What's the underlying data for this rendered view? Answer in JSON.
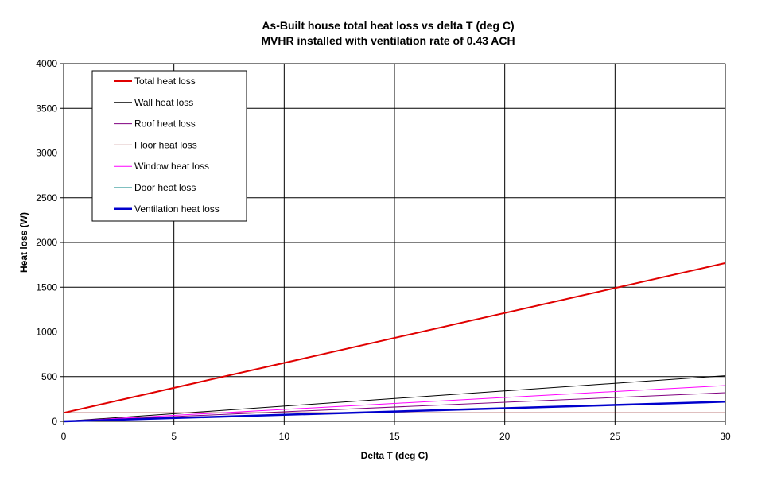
{
  "chart_data": {
    "type": "line",
    "title": "As-Built house total heat loss vs delta T (deg C)",
    "subtitle": "MVHR installed with ventilation rate of 0.43 ACH",
    "xlabel": "Delta T (deg C)",
    "ylabel": "Heat loss (W)",
    "xlim": [
      0,
      30
    ],
    "ylim": [
      0,
      4000
    ],
    "x_ticks": [
      0,
      5,
      10,
      15,
      20,
      25,
      30
    ],
    "y_ticks": [
      0,
      500,
      1000,
      1500,
      2000,
      2500,
      3000,
      3500,
      4000
    ],
    "grid": true,
    "legend_position": "top-left",
    "x": [
      0,
      30
    ],
    "series": [
      {
        "name": "Total heat loss",
        "color": "#e00000",
        "width": 2,
        "values": [
          95,
          1770
        ]
      },
      {
        "name": "Wall heat loss",
        "color": "#000000",
        "width": 1,
        "values": [
          0,
          510
        ]
      },
      {
        "name": "Roof heat loss",
        "color": "#800080",
        "width": 1,
        "values": [
          0,
          320
        ]
      },
      {
        "name": "Floor heat loss",
        "color": "#800000",
        "width": 1,
        "values": [
          95,
          95
        ]
      },
      {
        "name": "Window heat loss",
        "color": "#ff00ff",
        "width": 1,
        "values": [
          0,
          400
        ]
      },
      {
        "name": "Door heat loss",
        "color": "#008080",
        "width": 1,
        "values": [
          0,
          220
        ]
      },
      {
        "name": "Ventilation heat loss",
        "color": "#0000cc",
        "width": 2.5,
        "values": [
          0,
          220
        ]
      }
    ]
  }
}
